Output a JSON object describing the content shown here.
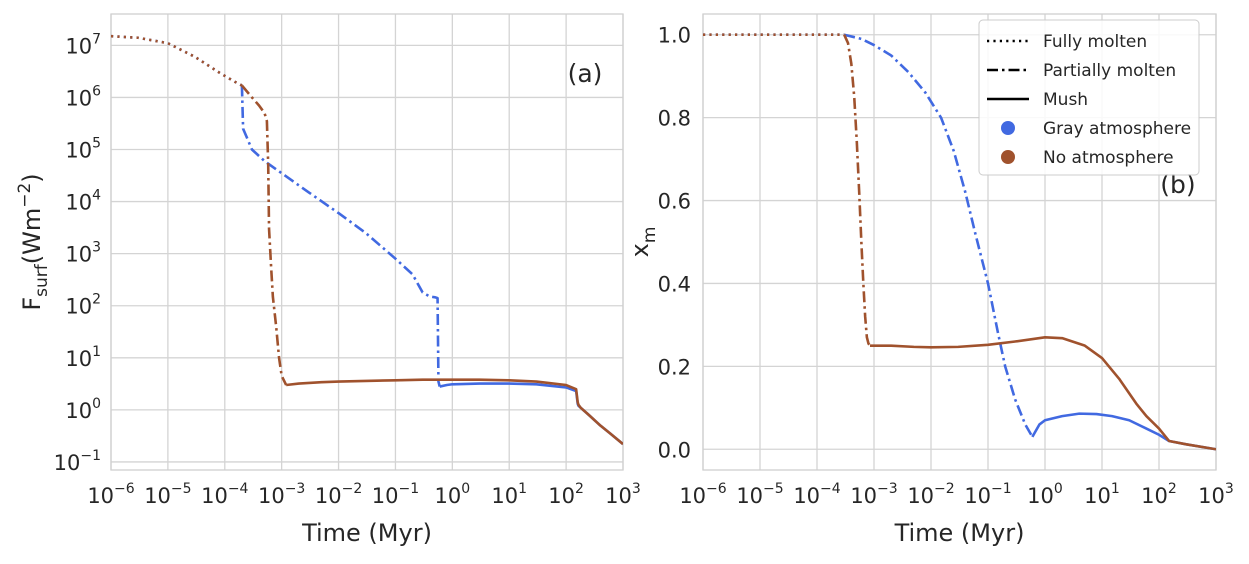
{
  "chart_data": [
    {
      "type": "line",
      "panel_label": "(a)",
      "xlabel": "Time (Myr)",
      "ylabel_main": "F",
      "ylabel_sub": "surf",
      "ylabel_tail": "(Wm",
      "ylabel_sup": "−2",
      "ylabel_close": ")",
      "xscale": "log",
      "yscale": "log",
      "xlim": [
        1e-06,
        1000
      ],
      "ylim": [
        0.07,
        40000000
      ],
      "grid": true,
      "xticks": [
        {
          "value": 1e-06,
          "base": "10",
          "exp": "−6"
        },
        {
          "value": 1e-05,
          "base": "10",
          "exp": "−5"
        },
        {
          "value": 0.0001,
          "base": "10",
          "exp": "−4"
        },
        {
          "value": 0.001,
          "base": "10",
          "exp": "−3"
        },
        {
          "value": 0.01,
          "base": "10",
          "exp": "−2"
        },
        {
          "value": 0.1,
          "base": "10",
          "exp": "−1"
        },
        {
          "value": 1,
          "base": "10",
          "exp": "0"
        },
        {
          "value": 10,
          "base": "10",
          "exp": "1"
        },
        {
          "value": 100,
          "base": "10",
          "exp": "2"
        },
        {
          "value": 1000,
          "base": "10",
          "exp": "3"
        }
      ],
      "yticks": [
        {
          "value": 0.1,
          "base": "10",
          "exp": "−1"
        },
        {
          "value": 1,
          "base": "10",
          "exp": "0"
        },
        {
          "value": 10,
          "base": "10",
          "exp": "1"
        },
        {
          "value": 100,
          "base": "10",
          "exp": "2"
        },
        {
          "value": 1000,
          "base": "10",
          "exp": "3"
        },
        {
          "value": 10000,
          "base": "10",
          "exp": "4"
        },
        {
          "value": 100000,
          "base": "10",
          "exp": "5"
        },
        {
          "value": 1000000,
          "base": "10",
          "exp": "6"
        },
        {
          "value": 10000000,
          "base": "10",
          "exp": "7"
        }
      ],
      "series": [
        {
          "atmosphere": "Gray atmosphere",
          "color": "#4169e1",
          "phase": "Fully molten",
          "style": "dotted",
          "x": [
            1e-06,
            3e-06,
            1e-05,
            3e-05,
            8e-05,
            0.00015,
            0.0002
          ],
          "y": [
            15000000,
            14000000,
            11000000,
            6000000,
            3000000,
            2000000,
            1700000
          ]
        },
        {
          "atmosphere": "Gray atmosphere",
          "color": "#4169e1",
          "phase": "Partially molten",
          "style": "dashdot",
          "x": [
            0.0002,
            0.00021,
            0.00025,
            0.0003,
            0.0005,
            0.001,
            0.003,
            0.01,
            0.03,
            0.1,
            0.2,
            0.3,
            0.4,
            0.5,
            0.55,
            0.57,
            0.6
          ],
          "y": [
            1700000,
            250000,
            160000,
            100000,
            60000,
            35000,
            15000,
            6000,
            2500,
            800,
            400,
            180,
            150,
            145,
            140,
            3.5,
            2.8
          ]
        },
        {
          "atmosphere": "Gray atmosphere",
          "color": "#4169e1",
          "phase": "Mush",
          "style": "solid",
          "x": [
            0.6,
            0.8,
            1,
            3,
            10,
            30,
            100,
            150,
            160,
            165,
            180,
            250,
            400,
            600,
            1000
          ],
          "y": [
            2.8,
            3.0,
            3.1,
            3.2,
            3.2,
            3.1,
            2.7,
            2.3,
            1.3,
            1.2,
            1.1,
            0.8,
            0.5,
            0.35,
            0.22
          ]
        },
        {
          "atmosphere": "No atmosphere",
          "color": "#a0522d",
          "phase": "Fully molten",
          "style": "dotted",
          "x": [
            1e-06,
            3e-06,
            1e-05,
            3e-05,
            8e-05,
            0.00015,
            0.0002
          ],
          "y": [
            15000000,
            14000000,
            11000000,
            6000000,
            3000000,
            2000000,
            1700000
          ]
        },
        {
          "atmosphere": "No atmosphere",
          "color": "#a0522d",
          "phase": "Partially molten",
          "style": "dashdot",
          "x": [
            0.0002,
            0.0003,
            0.0004,
            0.0005,
            0.00055,
            0.00058,
            0.0006,
            0.00065,
            0.0007,
            0.0008,
            0.0009,
            0.001,
            0.0012
          ],
          "y": [
            1700000,
            1000000,
            700000,
            500000,
            350000,
            50000,
            3000,
            600,
            150,
            40,
            10,
            4.5,
            3.0
          ]
        },
        {
          "atmosphere": "No atmosphere",
          "color": "#a0522d",
          "phase": "Mush",
          "style": "solid",
          "x": [
            0.0012,
            0.002,
            0.005,
            0.01,
            0.03,
            0.1,
            0.3,
            1,
            3,
            10,
            30,
            100,
            150,
            160,
            165,
            180,
            250,
            400,
            600,
            1000
          ],
          "y": [
            3.0,
            3.2,
            3.4,
            3.5,
            3.6,
            3.7,
            3.8,
            3.8,
            3.8,
            3.7,
            3.5,
            3.0,
            2.5,
            1.4,
            1.25,
            1.1,
            0.8,
            0.5,
            0.35,
            0.22
          ]
        }
      ]
    },
    {
      "type": "line",
      "panel_label": "(b)",
      "xlabel": "Time (Myr)",
      "ylabel_main": "x",
      "ylabel_sub": "m",
      "xscale": "log",
      "yscale": "linear",
      "xlim": [
        1e-06,
        1000
      ],
      "ylim": [
        -0.05,
        1.05
      ],
      "grid": true,
      "xticks": [
        {
          "value": 1e-06,
          "base": "10",
          "exp": "−6"
        },
        {
          "value": 1e-05,
          "base": "10",
          "exp": "−5"
        },
        {
          "value": 0.0001,
          "base": "10",
          "exp": "−4"
        },
        {
          "value": 0.001,
          "base": "10",
          "exp": "−3"
        },
        {
          "value": 0.01,
          "base": "10",
          "exp": "−2"
        },
        {
          "value": 0.1,
          "base": "10",
          "exp": "−1"
        },
        {
          "value": 1,
          "base": "10",
          "exp": "0"
        },
        {
          "value": 10,
          "base": "10",
          "exp": "1"
        },
        {
          "value": 100,
          "base": "10",
          "exp": "2"
        },
        {
          "value": 1000,
          "base": "10",
          "exp": "3"
        }
      ],
      "yticks": [
        {
          "value": 0.0,
          "label": "0.0"
        },
        {
          "value": 0.2,
          "label": "0.2"
        },
        {
          "value": 0.4,
          "label": "0.4"
        },
        {
          "value": 0.6,
          "label": "0.6"
        },
        {
          "value": 0.8,
          "label": "0.8"
        },
        {
          "value": 1.0,
          "label": "1.0"
        }
      ],
      "series": [
        {
          "atmosphere": "Gray atmosphere",
          "color": "#4169e1",
          "phase": "Fully molten",
          "style": "dotted",
          "x": [
            1e-06,
            1e-05,
            0.0001,
            0.0003
          ],
          "y": [
            1.0,
            1.0,
            1.0,
            1.0
          ]
        },
        {
          "atmosphere": "Gray atmosphere",
          "color": "#4169e1",
          "phase": "Partially molten",
          "style": "dashdot",
          "x": [
            0.0003,
            0.0006,
            0.001,
            0.002,
            0.004,
            0.008,
            0.015,
            0.025,
            0.04,
            0.06,
            0.1,
            0.15,
            0.2,
            0.3,
            0.45,
            0.6
          ],
          "y": [
            1.0,
            0.99,
            0.975,
            0.95,
            0.91,
            0.86,
            0.8,
            0.72,
            0.62,
            0.52,
            0.4,
            0.28,
            0.2,
            0.12,
            0.06,
            0.03
          ]
        },
        {
          "atmosphere": "Gray atmosphere",
          "color": "#4169e1",
          "phase": "Mush",
          "style": "solid",
          "x": [
            0.6,
            0.8,
            1,
            2,
            4,
            8,
            15,
            30,
            60,
            100,
            150,
            300,
            1000
          ],
          "y": [
            0.03,
            0.06,
            0.07,
            0.08,
            0.086,
            0.085,
            0.08,
            0.07,
            0.05,
            0.035,
            0.02,
            0.012,
            0.0
          ]
        },
        {
          "atmosphere": "No atmosphere",
          "color": "#a0522d",
          "phase": "Fully molten",
          "style": "dotted",
          "x": [
            1e-06,
            1e-05,
            0.0001,
            0.0003
          ],
          "y": [
            1.0,
            1.0,
            1.0,
            1.0
          ]
        },
        {
          "atmosphere": "No atmosphere",
          "color": "#a0522d",
          "phase": "Partially molten",
          "style": "dashdot",
          "x": [
            0.0003,
            0.00035,
            0.0004,
            0.00045,
            0.0005,
            0.00055,
            0.0006,
            0.00065,
            0.0007,
            0.00075,
            0.0008,
            0.00085
          ],
          "y": [
            1.0,
            0.98,
            0.93,
            0.85,
            0.74,
            0.62,
            0.5,
            0.4,
            0.32,
            0.27,
            0.255,
            0.25
          ]
        },
        {
          "atmosphere": "No atmosphere",
          "color": "#a0522d",
          "phase": "Mush",
          "style": "solid",
          "x": [
            0.00085,
            0.002,
            0.005,
            0.01,
            0.03,
            0.1,
            0.3,
            1,
            2,
            5,
            10,
            20,
            40,
            60,
            100,
            150,
            300,
            1000
          ],
          "y": [
            0.25,
            0.25,
            0.247,
            0.246,
            0.247,
            0.252,
            0.26,
            0.27,
            0.268,
            0.25,
            0.22,
            0.17,
            0.11,
            0.08,
            0.05,
            0.02,
            0.012,
            0.0
          ]
        }
      ],
      "legend": {
        "placement": "top-right",
        "entries": [
          {
            "label": "Fully molten",
            "kind": "line",
            "style": "dotted",
            "color": "#000000"
          },
          {
            "label": "Partially molten",
            "kind": "line",
            "style": "dashdot",
            "color": "#000000"
          },
          {
            "label": "Mush",
            "kind": "line",
            "style": "solid",
            "color": "#000000"
          },
          {
            "label": "Gray atmosphere",
            "kind": "marker",
            "color": "#4169e1"
          },
          {
            "label": "No atmosphere",
            "kind": "marker",
            "color": "#a0522d"
          }
        ]
      }
    }
  ]
}
